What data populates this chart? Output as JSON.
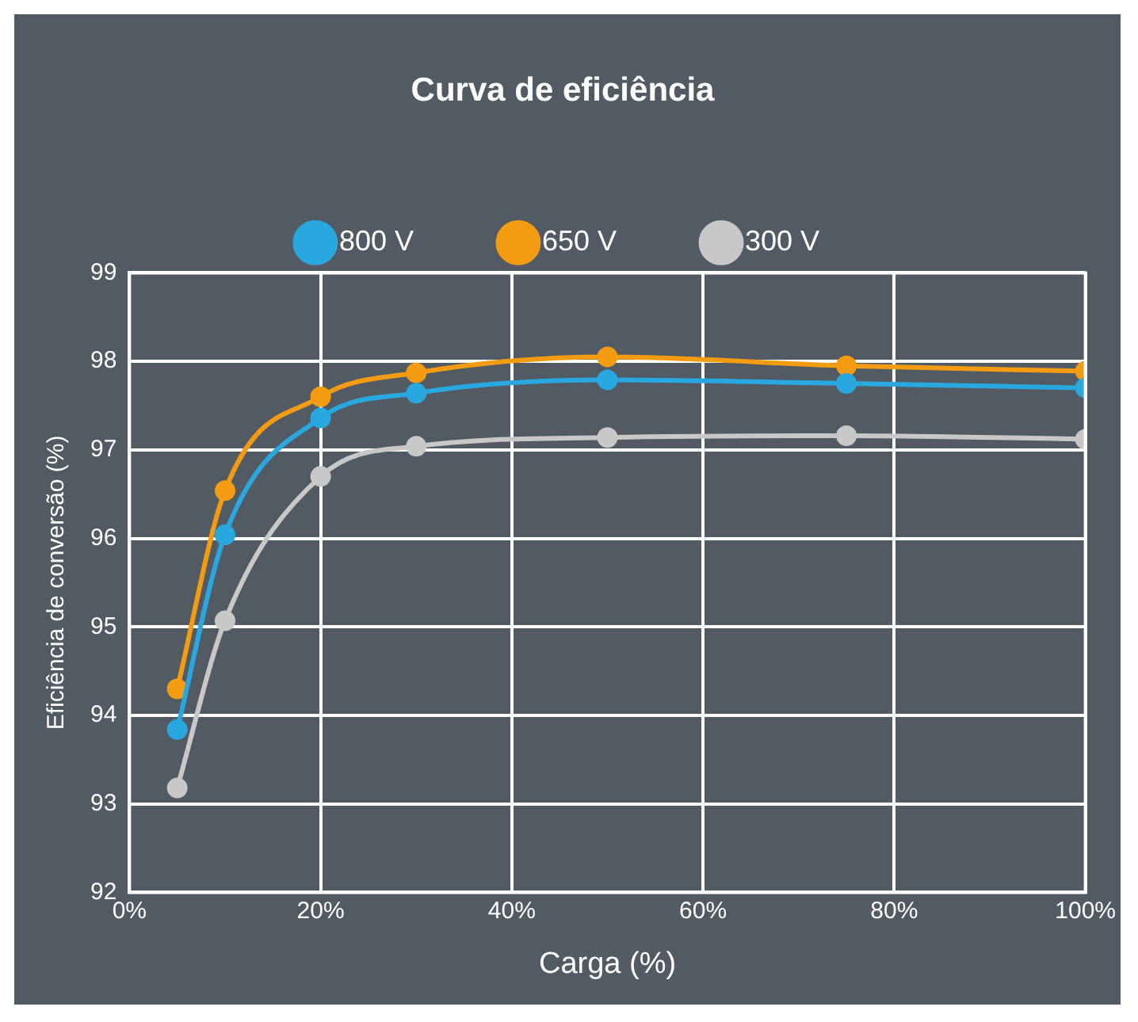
{
  "chart_data": {
    "type": "line",
    "title": "Curva de eficiência",
    "xlabel": "Carga (%)",
    "ylabel": "Eficiência de conversão (%)",
    "x": [
      5,
      10,
      20,
      30,
      50,
      75,
      100
    ],
    "series": [
      {
        "name": "800 V",
        "color": "#29a8e0",
        "values": [
          93.84,
          96.04,
          97.36,
          97.64,
          97.79,
          97.75,
          97.7
        ]
      },
      {
        "name": "650 V",
        "color": "#f39c12",
        "values": [
          94.3,
          96.54,
          97.6,
          97.87,
          98.05,
          97.95,
          97.89
        ]
      },
      {
        "name": "300 V",
        "color": "#c8c8c8",
        "values": [
          93.18,
          95.07,
          96.7,
          97.04,
          97.14,
          97.16,
          97.12
        ]
      }
    ],
    "xlim": [
      0,
      100
    ],
    "xticks": [
      {
        "value": 0,
        "label": "0%"
      },
      {
        "value": 20,
        "label": "20%"
      },
      {
        "value": 40,
        "label": "40%"
      },
      {
        "value": 60,
        "label": "60%"
      },
      {
        "value": 80,
        "label": "80%"
      },
      {
        "value": 100,
        "label": "100%"
      }
    ],
    "ylim": [
      92,
      99
    ],
    "yticks": [
      92,
      93,
      94,
      95,
      96,
      97,
      98,
      99
    ],
    "grid": true,
    "legend": "top",
    "marker": "circle",
    "line_style": "solid"
  }
}
